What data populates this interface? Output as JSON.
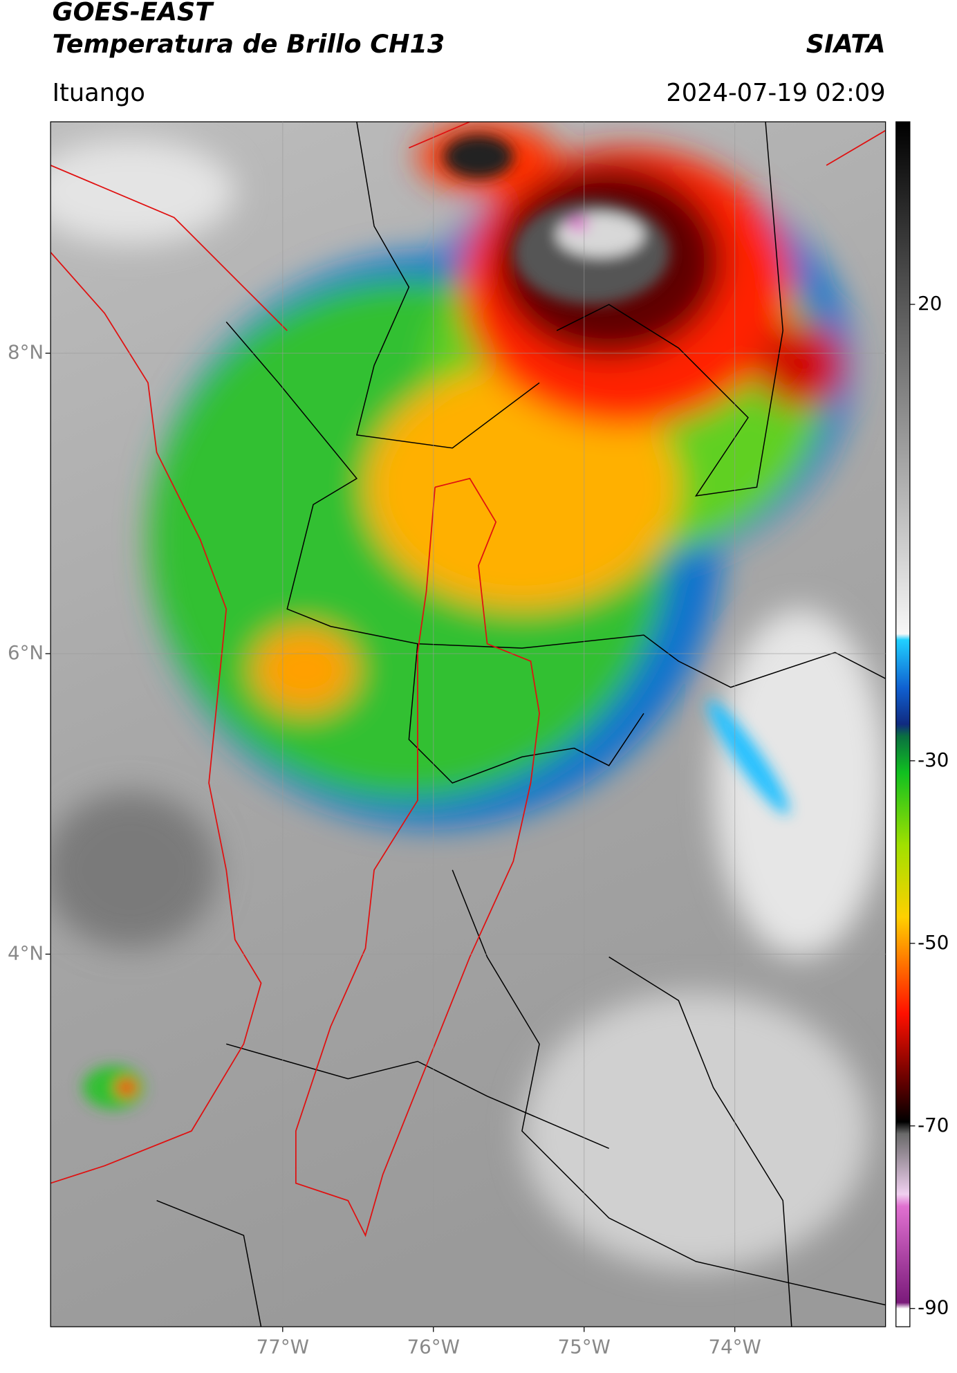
{
  "header": {
    "title": "GOES-EAST",
    "subtitle": "Temperatura de Brillo CH13",
    "source": "SIATA",
    "region": "Ituango",
    "datetime": "2024-07-19 02:09"
  },
  "map": {
    "xlim": [
      -78.54,
      -73.0
    ],
    "ylim": [
      1.52,
      9.54
    ],
    "xticks": [
      {
        "value": -77,
        "label": "77°W"
      },
      {
        "value": -76,
        "label": "76°W"
      },
      {
        "value": -75,
        "label": "75°W"
      },
      {
        "value": -74,
        "label": "74°W"
      }
    ],
    "yticks": [
      {
        "value": 8,
        "label": "8°N"
      },
      {
        "value": 6,
        "label": "6°N"
      },
      {
        "value": 4,
        "label": "4°N"
      }
    ],
    "grid": true
  },
  "colorbar": {
    "lim": [
      -92,
      40
    ],
    "ticks": [
      20,
      -30,
      -50,
      -70,
      -90
    ]
  }
}
